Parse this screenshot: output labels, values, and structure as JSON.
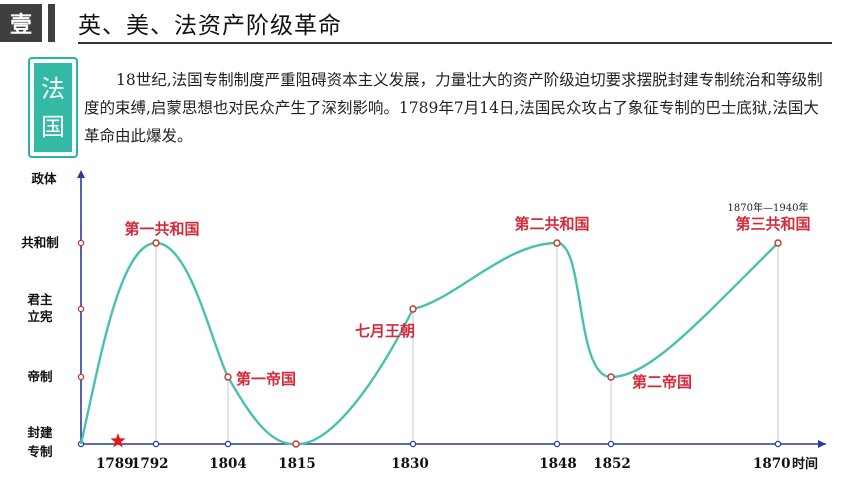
{
  "header": {
    "badge": "壹",
    "title": "英、美、法资产阶级革命"
  },
  "intro": {
    "country_chars": [
      "法",
      "国"
    ],
    "paragraph": "18世纪,法国专制制度严重阻碍资本主义发展，力量壮大的资产阶级迫切要求摆脱封建专制统治和等级制度的束缚,启蒙思想也对民众产生了深刻影响。1789年7月14日,法国民众攻占了象征专制的巴士底狱,法国大革命由此爆发。"
  },
  "chart_data": {
    "type": "line",
    "ylabel": "政体",
    "xlabel": "时间",
    "y_levels": [
      "封建专制",
      "帝制",
      "君主立宪",
      "共和制"
    ],
    "x_ticks": [
      "1789",
      "1792",
      "1804",
      "1815",
      "1830",
      "1848",
      "1852",
      "1870"
    ],
    "points": [
      {
        "x": "1789",
        "y": "封建专制",
        "label": ""
      },
      {
        "x": "1792",
        "y": "共和制",
        "label": "第一共和国"
      },
      {
        "x": "1804",
        "y": "帝制",
        "label": "第一帝国"
      },
      {
        "x": "1815",
        "y": "封建专制",
        "label": ""
      },
      {
        "x": "1830",
        "y": "君主立宪",
        "label": "七月王朝"
      },
      {
        "x": "1848",
        "y": "共和制",
        "label": "第二共和国"
      },
      {
        "x": "1852",
        "y": "帝制",
        "label": "第二帝国"
      },
      {
        "x": "1870",
        "y": "共和制",
        "label": "第三共和国"
      }
    ],
    "annotation": "1870年—1940年",
    "marker": "1789",
    "colors": {
      "line": "#48c1b0",
      "label": "#d42a3a",
      "axis": "#2b3aa0",
      "star": "#e8141c"
    }
  }
}
